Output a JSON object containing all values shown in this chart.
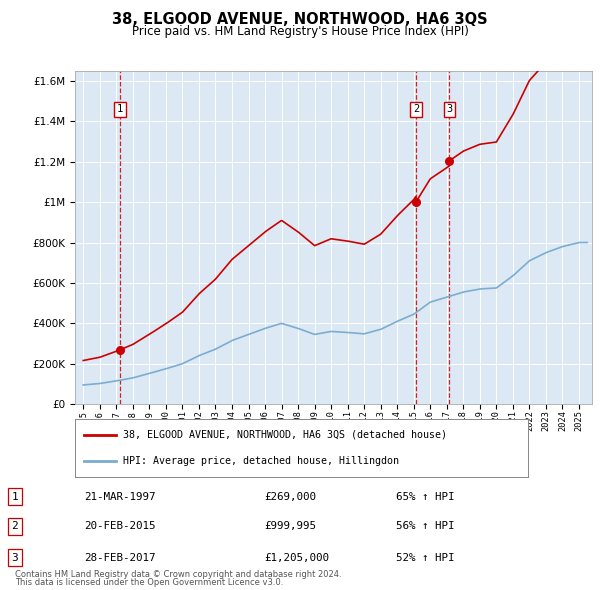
{
  "title": "38, ELGOOD AVENUE, NORTHWOOD, HA6 3QS",
  "subtitle": "Price paid vs. HM Land Registry's House Price Index (HPI)",
  "legend_line1": "38, ELGOOD AVENUE, NORTHWOOD, HA6 3QS (detached house)",
  "legend_line2": "HPI: Average price, detached house, Hillingdon",
  "footer1": "Contains HM Land Registry data © Crown copyright and database right 2024.",
  "footer2": "This data is licensed under the Open Government Licence v3.0.",
  "sale_labels": [
    "1",
    "2",
    "3"
  ],
  "sale_dates": [
    1997.22,
    2015.13,
    2017.16
  ],
  "sale_prices": [
    269000,
    999995,
    1205000
  ],
  "sale_info": [
    [
      "1",
      "21-MAR-1997",
      "£269,000",
      "65% ↑ HPI"
    ],
    [
      "2",
      "20-FEB-2015",
      "£999,995",
      "56% ↑ HPI"
    ],
    [
      "3",
      "28-FEB-2017",
      "£1,205,000",
      "52% ↑ HPI"
    ]
  ],
  "ylim": [
    0,
    1650000
  ],
  "xlim": [
    1994.5,
    2025.8
  ],
  "plot_bg": "#dce9f5",
  "red_color": "#cc0000",
  "blue_color": "#7aadcf",
  "grid_color": "#ffffff",
  "years_hpi": [
    1995,
    1996,
    1997,
    1998,
    1999,
    2000,
    2001,
    2002,
    2003,
    2004,
    2005,
    2006,
    2007,
    2008,
    2009,
    2010,
    2011,
    2012,
    2013,
    2014,
    2015,
    2016,
    2017,
    2018,
    2019,
    2020,
    2021,
    2022,
    2023,
    2024,
    2025
  ],
  "hpi_values": [
    95000,
    102000,
    115000,
    130000,
    152000,
    175000,
    200000,
    240000,
    272000,
    315000,
    345000,
    375000,
    400000,
    375000,
    345000,
    360000,
    355000,
    348000,
    370000,
    410000,
    445000,
    505000,
    530000,
    555000,
    570000,
    575000,
    635000,
    710000,
    750000,
    780000,
    800000
  ]
}
